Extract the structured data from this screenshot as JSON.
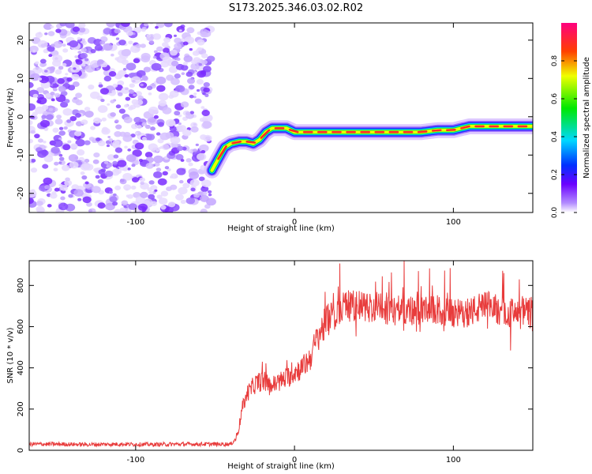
{
  "title": "S173.2025.346.03.02.R02",
  "chart_data": [
    {
      "type": "heatmap",
      "name": "spectrogram",
      "xlabel": "Height of straight line (km)",
      "ylabel": "Frequency (Hz)",
      "xlim": [
        -167,
        150
      ],
      "ylim": [
        -25,
        24.5
      ],
      "xticks": [
        -100,
        0,
        100
      ],
      "yticks": [
        -20,
        -10,
        0,
        10,
        20
      ],
      "colorbar": {
        "label": "Normalized spectral amplitude",
        "range": [
          0,
          1
        ],
        "ticks": [
          "0.0",
          "0.2",
          "0.4",
          "0.6",
          "0.8"
        ]
      },
      "noise_region_x": [
        -167,
        -52
      ],
      "ridge": {
        "x": [
          -52,
          -48,
          -44,
          -40,
          -35,
          -30,
          -26,
          -22,
          -18,
          -14,
          -10,
          -5,
          0,
          10,
          20,
          30,
          40,
          50,
          60,
          70,
          80,
          90,
          100,
          110,
          120,
          130,
          140,
          150
        ],
        "y": [
          -14,
          -11,
          -8,
          -7,
          -6.5,
          -6.5,
          -7,
          -6,
          -4,
          -3,
          -3,
          -3,
          -4,
          -4,
          -4,
          -4,
          -4,
          -4,
          -4,
          -4,
          -4,
          -3.5,
          -3.5,
          -2.5,
          -2.5,
          -2.5,
          -2.5,
          -2.5
        ]
      }
    },
    {
      "type": "line",
      "name": "snr",
      "xlabel": "Height of straight line (km)",
      "ylabel": "SNR (10 * v/v)",
      "xlim": [
        -167,
        150
      ],
      "ylim": [
        0,
        920
      ],
      "xticks": [
        -100,
        0,
        100
      ],
      "yticks": [
        0,
        200,
        400,
        600,
        800
      ],
      "color": "#e83c3c",
      "series": [
        {
          "name": "SNR",
          "x": [
            -167,
            -150,
            -130,
            -110,
            -90,
            -70,
            -50,
            -40,
            -37,
            -35,
            -33,
            -30,
            -25,
            -20,
            -15,
            -10,
            -5,
            0,
            5,
            10,
            15,
            20,
            25,
            30,
            40,
            50,
            60,
            70,
            80,
            90,
            100,
            110,
            120,
            130,
            140,
            150
          ],
          "y": [
            30,
            30,
            28,
            30,
            28,
            30,
            30,
            30,
            55,
            110,
            200,
            270,
            320,
            340,
            310,
            330,
            350,
            380,
            400,
            450,
            560,
            620,
            650,
            700,
            700,
            690,
            680,
            680,
            670,
            680,
            660,
            670,
            700,
            680,
            660,
            680
          ]
        }
      ]
    }
  ]
}
